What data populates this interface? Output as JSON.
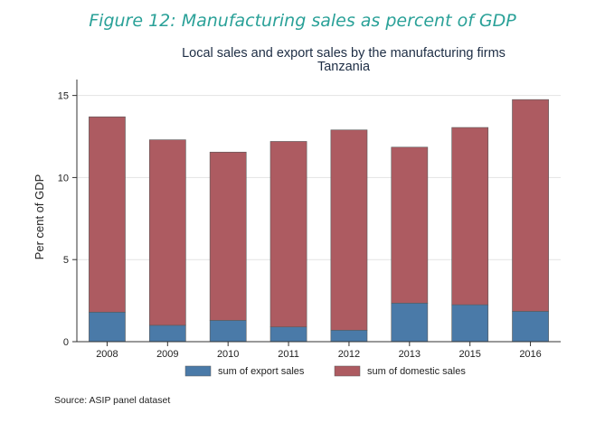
{
  "figure_caption": "Figure 12: Manufacturing sales as percent of GDP",
  "source_note": "Source: ASIP panel dataset",
  "colors": {
    "export": "#4a7aa8",
    "domestic": "#ad5b61",
    "grid": "#e3e3e3",
    "axis": "#333333"
  },
  "chart_data": {
    "type": "bar",
    "stacked": true,
    "title": "Local sales and export sales by the manufacturing firms",
    "subtitle": "Tanzania",
    "xlabel": "",
    "ylabel": "Per cent of GDP",
    "ylim": [
      0,
      15.75
    ],
    "yticks": [
      0,
      5,
      10,
      15
    ],
    "grid": true,
    "legend_position": "bottom",
    "categories": [
      "2008",
      "2009",
      "2010",
      "2011",
      "2012",
      "2013",
      "2015",
      "2016"
    ],
    "series": [
      {
        "name": "sum of export sales",
        "values": [
          1.8,
          1.0,
          1.3,
          0.9,
          0.7,
          2.35,
          2.25,
          1.85
        ]
      },
      {
        "name": "sum of domestic sales",
        "values": [
          11.9,
          11.3,
          10.25,
          11.3,
          12.2,
          9.5,
          10.8,
          12.9
        ]
      }
    ]
  }
}
